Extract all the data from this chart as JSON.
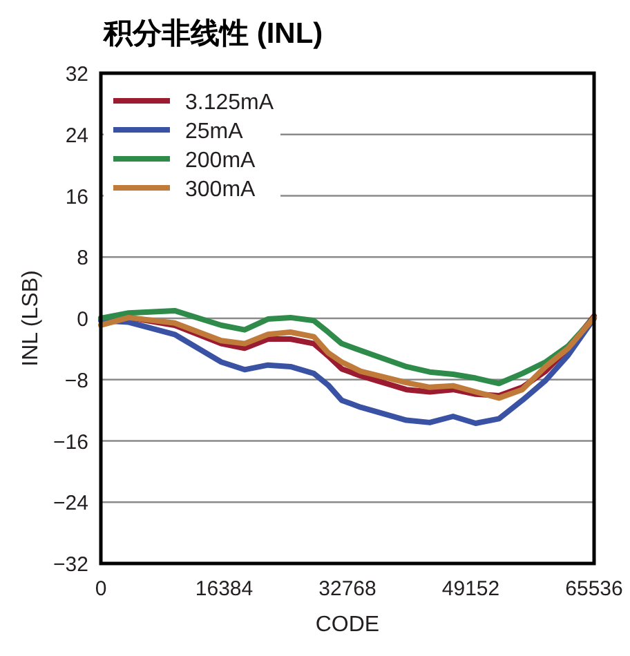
{
  "chart_data": {
    "type": "line",
    "title": "积分非线性 (INL)",
    "xlabel": "CODE",
    "ylabel": "INL (LSB)",
    "x": [
      0,
      3700,
      9800,
      16000,
      19100,
      22200,
      25200,
      28300,
      30200,
      32000,
      34500,
      40600,
      43700,
      46800,
      49800,
      52900,
      56000,
      59100,
      62100,
      65536
    ],
    "series": [
      {
        "name": "3.125mA",
        "color": "#9b1b30",
        "values": [
          0,
          0.1,
          -0.9,
          -3.3,
          -3.9,
          -2.7,
          -2.7,
          -3.3,
          -4.9,
          -6.6,
          -7.5,
          -9.3,
          -9.6,
          -9.3,
          -9.9,
          -10.1,
          -9.0,
          -6.9,
          -3.9,
          0.3
        ]
      },
      {
        "name": "25mA",
        "color": "#3a52a4",
        "values": [
          -0.3,
          -0.5,
          -2.1,
          -5.7,
          -6.7,
          -6.1,
          -6.3,
          -7.2,
          -8.7,
          -10.7,
          -11.6,
          -13.3,
          -13.6,
          -12.8,
          -13.7,
          -13.1,
          -10.7,
          -8.1,
          -4.8,
          0
        ]
      },
      {
        "name": "200mA",
        "color": "#2e8b4a",
        "values": [
          0,
          0.7,
          1.0,
          -0.9,
          -1.5,
          -0.1,
          0.1,
          -0.3,
          -1.8,
          -3.3,
          -4.2,
          -6.3,
          -7.0,
          -7.3,
          -7.8,
          -8.5,
          -7.2,
          -5.7,
          -3.6,
          0.1
        ]
      },
      {
        "name": "300mA",
        "color": "#c07a3a",
        "values": [
          -0.9,
          0.1,
          -0.6,
          -2.9,
          -3.3,
          -2.1,
          -1.8,
          -2.4,
          -4.5,
          -5.7,
          -6.9,
          -8.4,
          -9.0,
          -8.8,
          -9.6,
          -10.4,
          -9.3,
          -6.3,
          -3.9,
          0.1
        ]
      }
    ],
    "xlim": [
      0,
      65536
    ],
    "xticks": [
      0,
      16384,
      32768,
      49152,
      65536
    ],
    "ylim": [
      -32,
      32
    ],
    "yticks": [
      {
        "value": -32,
        "label": "−32"
      },
      {
        "value": -24,
        "label": "−24"
      },
      {
        "value": -16,
        "label": "−16"
      },
      {
        "value": -8,
        "label": "−8"
      },
      0,
      8,
      16,
      24,
      32
    ],
    "grid": "y",
    "legend": "top left",
    "line_style": "solid",
    "marker": "none"
  }
}
